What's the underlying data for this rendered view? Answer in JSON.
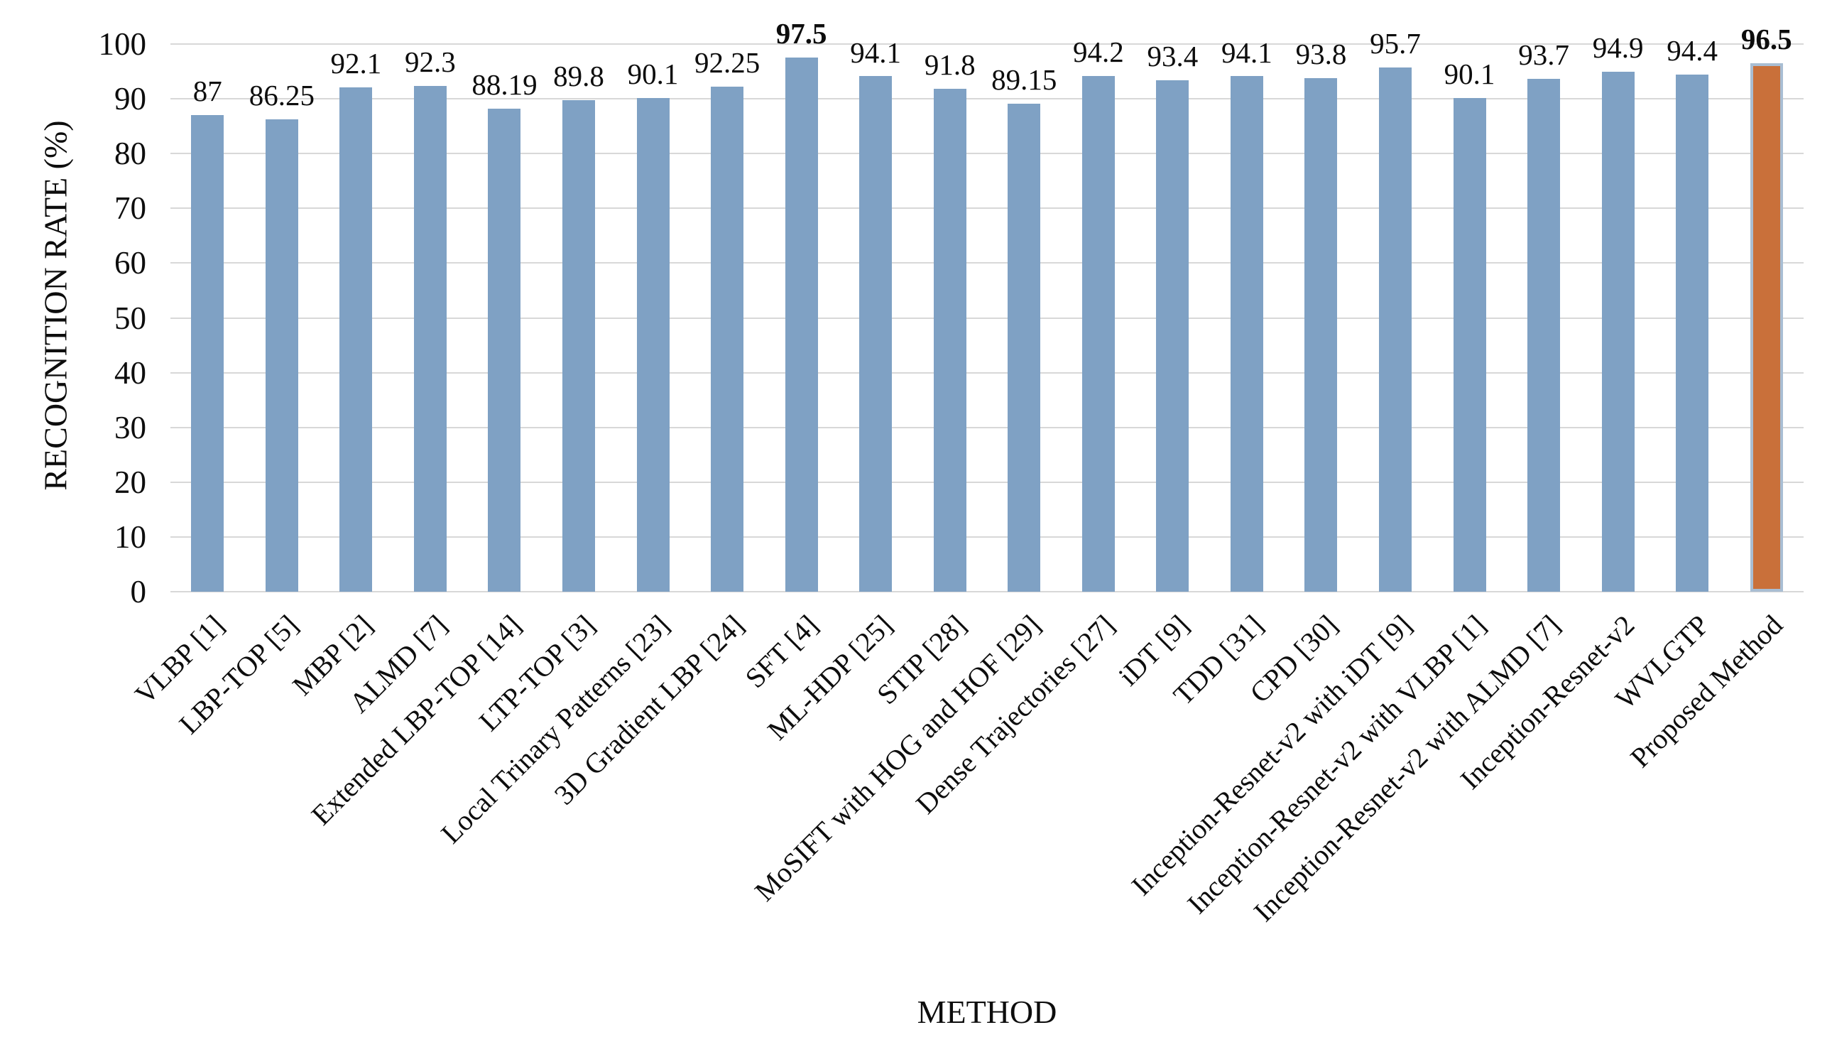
{
  "figure": {
    "background": "#ffffff"
  },
  "chart_data": {
    "type": "bar",
    "title": "",
    "xlabel": "METHOD",
    "ylabel": "RECOGNITION RATE (%)",
    "ylim": [
      0,
      100
    ],
    "yticks": [
      0,
      10,
      20,
      30,
      40,
      50,
      60,
      70,
      80,
      90,
      100
    ],
    "grid": "horizontal",
    "legend": "none",
    "categories": [
      "VLBP [1]",
      "LBP-TOP [5]",
      "MBP [2]",
      "ALMD [7]",
      "Extended LBP-TOP [14]",
      "LTP-TOP [3]",
      "Local Trinary Patterns [23]",
      "3D Gradient LBP [24]",
      "SFT [4]",
      "ML-HDP [25]",
      "STIP [28]",
      "MoSIFT with HOG and HOF [29]",
      "Dense Trajectories [27]",
      "iDT [9]",
      "TDD [31]",
      "CPD [30]",
      "Inception-Resnet-v2 with iDT [9]",
      "Inception-Resnet-v2 with VLBP [1]",
      "Inception-Resnet-v2 with ALMD [7]",
      "Inception-Resnet-v2",
      "WVLGTP",
      "Proposed Method"
    ],
    "values": [
      87,
      86.25,
      92.1,
      92.3,
      88.19,
      89.8,
      90.1,
      92.25,
      97.5,
      94.1,
      91.8,
      89.15,
      94.2,
      93.4,
      94.1,
      93.8,
      95.7,
      90.1,
      93.7,
      94.9,
      94.4,
      96.5
    ],
    "value_labels": [
      "87",
      "86.25",
      "92.1",
      "92.3",
      "88.19",
      "89.8",
      "90.1",
      "92.25",
      "97.5",
      "94.1",
      "91.8",
      "89.15",
      "94.2",
      "93.4",
      "94.1",
      "93.8",
      "95.7",
      "90.1",
      "93.7",
      "94.9",
      "94.4",
      "96.5"
    ],
    "bold_label_indices": [
      8,
      21
    ],
    "highlight_index": 21,
    "colors": {
      "bar": "#7fa1c4",
      "highlight_bar": "#c9703a",
      "highlight_border": "#a9bed3",
      "gridline": "#d8d8d8",
      "text": "#0d0d0d"
    }
  }
}
